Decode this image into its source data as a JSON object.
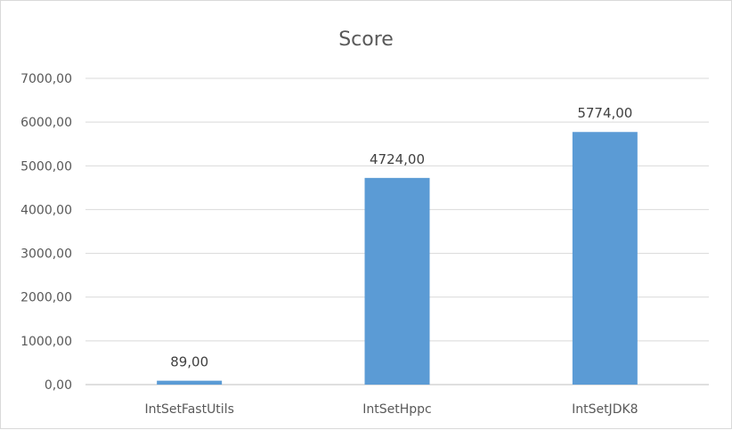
{
  "chart_data": {
    "type": "bar",
    "title": "Score",
    "categories": [
      "IntSetFastUtils",
      "IntSetHppc",
      "IntSetJDK8"
    ],
    "values": [
      89,
      4724,
      5774
    ],
    "value_labels": [
      "89,00",
      "4724,00",
      "5774,00"
    ],
    "yticks": [
      0,
      1000,
      2000,
      3000,
      4000,
      5000,
      6000,
      7000
    ],
    "ytick_labels": [
      "0,00",
      "1000,00",
      "2000,00",
      "3000,00",
      "4000,00",
      "5000,00",
      "6000,00",
      "7000,00"
    ],
    "ylim": [
      0,
      7000
    ],
    "grid": true,
    "legend": "none",
    "bar_color": "#5b9bd5"
  }
}
